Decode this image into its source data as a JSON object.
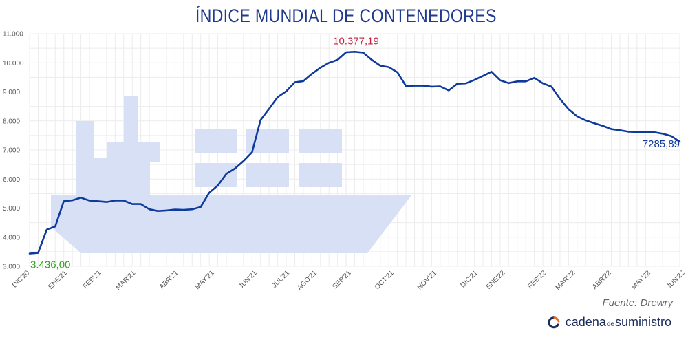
{
  "chart_data": {
    "type": "line",
    "title": "ÍNDICE MUNDIAL DE CONTENEDORES",
    "xlabel": "",
    "ylabel": "",
    "ylim": [
      3000,
      11000
    ],
    "yticks": [
      "3.000",
      "4.000",
      "5.000",
      "6.000",
      "7.000",
      "8.000",
      "9.000",
      "10.000",
      "11.000"
    ],
    "yticks_values": [
      3000,
      4000,
      5000,
      6000,
      7000,
      8000,
      9000,
      10000,
      11000
    ],
    "month_ticks": [
      {
        "label": "DIC'20",
        "x": 0
      },
      {
        "label": "ENE'21",
        "x": 4.4
      },
      {
        "label": "FEB'21",
        "x": 8.4
      },
      {
        "label": "MAR'21",
        "x": 12.4
      },
      {
        "label": "ABR'21",
        "x": 17.4
      },
      {
        "label": "MAY'21",
        "x": 21.6
      },
      {
        "label": "JUN'21",
        "x": 26.6
      },
      {
        "label": "JUL'21",
        "x": 30.4
      },
      {
        "label": "AGO'21",
        "x": 33.6
      },
      {
        "label": "SEP'21",
        "x": 37.6
      },
      {
        "label": "OCT'21",
        "x": 42.6
      },
      {
        "label": "NOV'21",
        "x": 47.6
      },
      {
        "label": "DIC'21",
        "x": 52.4
      },
      {
        "label": "ENE'22",
        "x": 55.6
      },
      {
        "label": "FEB'22",
        "x": 60.4
      },
      {
        "label": "MAR'22",
        "x": 63.8
      },
      {
        "label": "ABR'22",
        "x": 68.0
      },
      {
        "label": "MAY'22",
        "x": 72.6
      },
      {
        "label": "JUN'22",
        "x": 76.6
      }
    ],
    "series": [
      {
        "name": "Índice Mundial de Contenedores",
        "color": "#0e3a9c",
        "values": [
          3436,
          3460,
          4260,
          4370,
          5240,
          5270,
          5360,
          5260,
          5240,
          5210,
          5260,
          5260,
          5140,
          5140,
          4960,
          4900,
          4920,
          4950,
          4940,
          4960,
          5040,
          5530,
          5780,
          6180,
          6360,
          6620,
          6920,
          8030,
          8420,
          8820,
          9020,
          9330,
          9370,
          9620,
          9830,
          10000,
          10100,
          10360,
          10377,
          10350,
          10100,
          9900,
          9850,
          9670,
          9200,
          9210,
          9210,
          9180,
          9190,
          9050,
          9280,
          9290,
          9410,
          9550,
          9690,
          9400,
          9300,
          9360,
          9360,
          9480,
          9290,
          9180,
          8760,
          8400,
          8160,
          8020,
          7920,
          7830,
          7720,
          7680,
          7630,
          7620,
          7620,
          7610,
          7560,
          7480,
          7286
        ]
      }
    ],
    "annotations": [
      {
        "label": "3.436,00",
        "color": "#2aa817",
        "index": 0
      },
      {
        "label": "10.377,19",
        "color": "#c8203f",
        "index": 38
      },
      {
        "label": "7285,89",
        "color": "#0e3a9c",
        "index": 76
      }
    ],
    "ship_color": "#d8e0f5"
  },
  "source_text": "Fuente: Drewry",
  "brand": {
    "part1": "cadena",
    "part2": "de",
    "part3": "suministro",
    "icon": "cadena-logo-icon"
  }
}
